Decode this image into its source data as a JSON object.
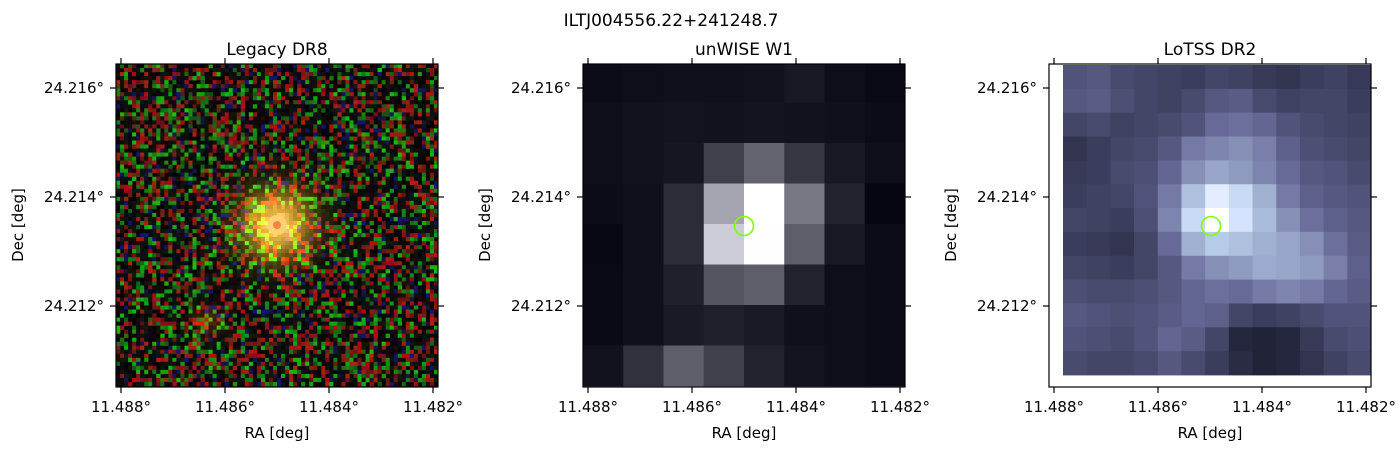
{
  "figure": {
    "title": "ILTJ004556.22+241248.7"
  },
  "panels": [
    {
      "title": "Legacy DR8",
      "xlabel": "RA [deg]",
      "ylabel": "Dec [deg]",
      "xticks": [
        "11.488°",
        "11.486°",
        "11.484°",
        "11.482°"
      ],
      "yticks": [
        "24.216°",
        "24.214°",
        "24.212°"
      ],
      "style": "optical-color"
    },
    {
      "title": "unWISE W1",
      "xlabel": "RA [deg]",
      "ylabel": "Dec [deg]",
      "xticks": [
        "11.488°",
        "11.486°",
        "11.484°",
        "11.482°"
      ],
      "yticks": [
        "24.216°",
        "24.214°",
        "24.212°"
      ],
      "style": "grayscale-coarse",
      "marker_color": "#7fff00"
    },
    {
      "title": "LoTSS DR2",
      "xlabel": "RA [deg]",
      "ylabel": "Dec [deg]",
      "xticks": [
        "11.488°",
        "11.486°",
        "11.484°",
        "11.482°"
      ],
      "yticks": [
        "24.216°",
        "24.214°",
        "24.212°"
      ],
      "style": "bone-radio",
      "marker_color": "#7fff00"
    }
  ]
}
